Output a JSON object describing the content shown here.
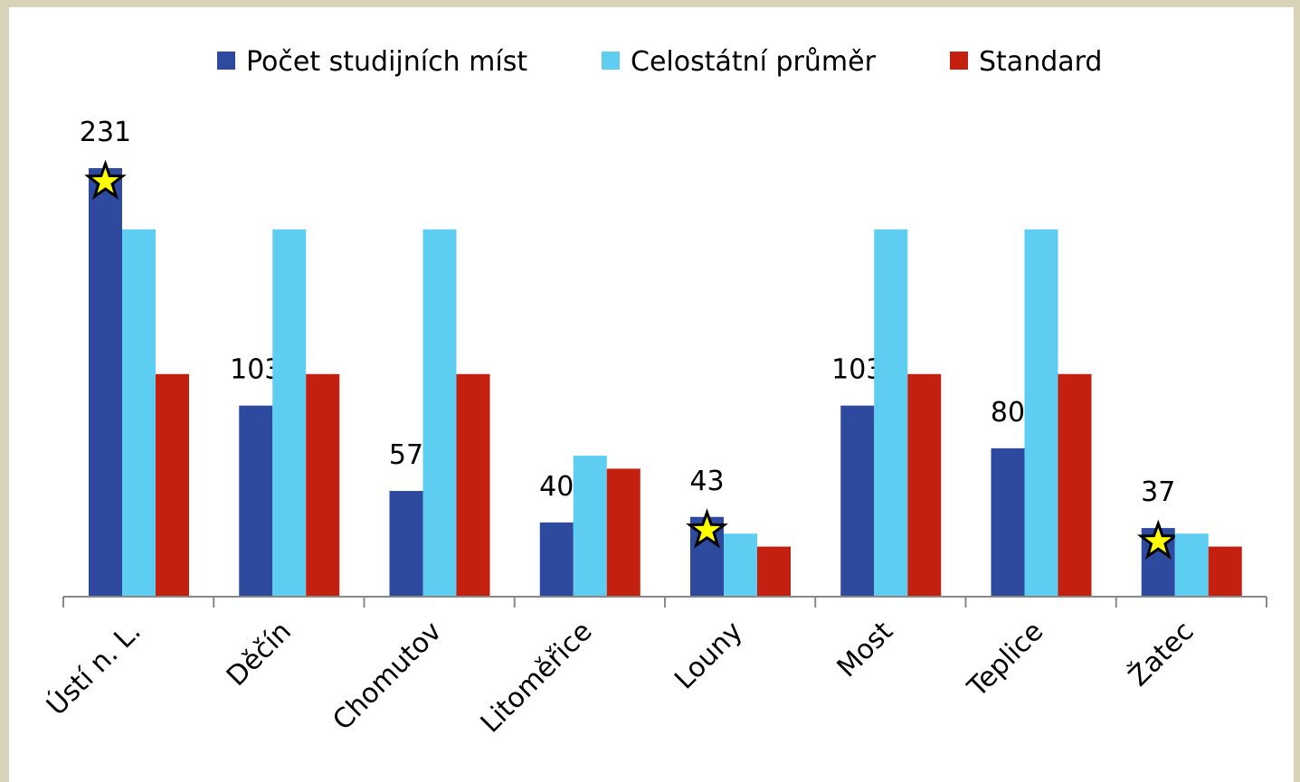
{
  "chart_data": {
    "type": "bar",
    "categories": [
      "Ústí n. L.",
      "Děčín",
      "Chomutov",
      "Litoměřice",
      "Louny",
      "Most",
      "Teplice",
      "Žatec"
    ],
    "series": [
      {
        "name": "Počet studijních míst",
        "color": "#2e4a9e",
        "values": [
          231,
          103,
          57,
          40,
          43,
          103,
          80,
          37
        ]
      },
      {
        "name": "Celostátní průměr",
        "color": "#5ecdf2",
        "values": [
          198,
          198,
          198,
          76,
          34,
          198,
          198,
          34
        ]
      },
      {
        "name": "Standard",
        "color": "#c4200f",
        "values": [
          120,
          120,
          120,
          69,
          27,
          120,
          120,
          27
        ]
      }
    ],
    "star_markers": [
      true,
      false,
      false,
      false,
      true,
      false,
      false,
      true
    ],
    "ylim": [
      0,
      240
    ]
  }
}
